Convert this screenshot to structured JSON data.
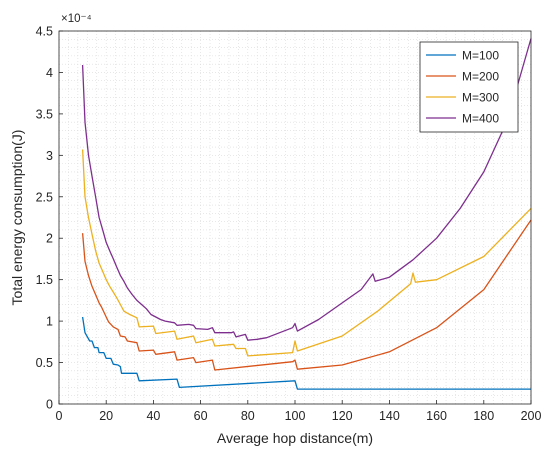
{
  "chart_data": {
    "type": "line",
    "title": "",
    "xlabel": "Average hop distance(m)",
    "ylabel": "Total energy consumption(J)",
    "y_exponent_label": "×10⁻⁴",
    "xlim": [
      0,
      200
    ],
    "ylim": [
      0,
      4.5
    ],
    "x_ticks": [
      0,
      20,
      40,
      60,
      80,
      100,
      120,
      140,
      160,
      180,
      200
    ],
    "y_ticks": [
      0,
      0.5,
      1,
      1.5,
      2,
      2.5,
      3,
      3.5,
      4,
      4.5
    ],
    "y_tick_labels": [
      "0",
      "0.5",
      "1",
      "1.5",
      "2",
      "2.5",
      "3",
      "3.5",
      "4",
      "4.5"
    ],
    "grid": "on (dotted, minor)",
    "legend_position": "top-right",
    "series": [
      {
        "name": "M=100",
        "color": "#0072bd",
        "points": [
          [
            10,
            1.05
          ],
          [
            11,
            0.86
          ],
          [
            13,
            0.76
          ],
          [
            14,
            0.76
          ],
          [
            15,
            0.68
          ],
          [
            16.5,
            0.68
          ],
          [
            17,
            0.62
          ],
          [
            19,
            0.62
          ],
          [
            20,
            0.55
          ],
          [
            22,
            0.55
          ],
          [
            23,
            0.48
          ],
          [
            25,
            0.47
          ],
          [
            26,
            0.45
          ],
          [
            26.5,
            0.37
          ],
          [
            33,
            0.37
          ],
          [
            34,
            0.28
          ],
          [
            50,
            0.3
          ],
          [
            51,
            0.2
          ],
          [
            100,
            0.28
          ],
          [
            101,
            0.18
          ],
          [
            200,
            0.18
          ]
        ]
      },
      {
        "name": "M=200",
        "color": "#d95319",
        "points": [
          [
            10,
            2.06
          ],
          [
            11,
            1.72
          ],
          [
            12.5,
            1.55
          ],
          [
            14,
            1.42
          ],
          [
            15.5,
            1.32
          ],
          [
            17,
            1.22
          ],
          [
            18,
            1.17
          ],
          [
            20,
            1.05
          ],
          [
            21,
            0.99
          ],
          [
            23,
            0.93
          ],
          [
            25,
            0.9
          ],
          [
            26,
            0.82
          ],
          [
            28,
            0.81
          ],
          [
            29,
            0.76
          ],
          [
            33,
            0.74
          ],
          [
            34,
            0.64
          ],
          [
            40,
            0.65
          ],
          [
            41,
            0.6
          ],
          [
            49,
            0.63
          ],
          [
            50,
            0.53
          ],
          [
            57,
            0.56
          ],
          [
            58,
            0.5
          ],
          [
            65,
            0.53
          ],
          [
            66,
            0.41
          ],
          [
            99,
            0.51
          ],
          [
            100,
            0.53
          ],
          [
            101,
            0.42
          ],
          [
            120,
            0.47
          ],
          [
            140,
            0.63
          ],
          [
            160,
            0.92
          ],
          [
            180,
            1.38
          ],
          [
            200,
            2.22
          ]
        ]
      },
      {
        "name": "M=300",
        "color": "#edb120",
        "points": [
          [
            10,
            3.07
          ],
          [
            11,
            2.5
          ],
          [
            12.5,
            2.25
          ],
          [
            14,
            2.05
          ],
          [
            15.5,
            1.85
          ],
          [
            17,
            1.7
          ],
          [
            18.5,
            1.6
          ],
          [
            20,
            1.5
          ],
          [
            21.5,
            1.42
          ],
          [
            23,
            1.35
          ],
          [
            24.5,
            1.28
          ],
          [
            26,
            1.2
          ],
          [
            27.5,
            1.12
          ],
          [
            30,
            1.08
          ],
          [
            33,
            1.04
          ],
          [
            34,
            0.93
          ],
          [
            40,
            0.94
          ],
          [
            41,
            0.85
          ],
          [
            49,
            0.88
          ],
          [
            50,
            0.78
          ],
          [
            57,
            0.82
          ],
          [
            58,
            0.74
          ],
          [
            65,
            0.78
          ],
          [
            66,
            0.7
          ],
          [
            74,
            0.72
          ],
          [
            75,
            0.67
          ],
          [
            79,
            0.67
          ],
          [
            80,
            0.58
          ],
          [
            99,
            0.62
          ],
          [
            100,
            0.76
          ],
          [
            101,
            0.64
          ],
          [
            120,
            0.82
          ],
          [
            135,
            1.12
          ],
          [
            149,
            1.45
          ],
          [
            150,
            1.58
          ],
          [
            151,
            1.47
          ],
          [
            160,
            1.5
          ],
          [
            180,
            1.78
          ],
          [
            200,
            2.36
          ]
        ]
      },
      {
        "name": "M=400",
        "color": "#7e2f8e",
        "points": [
          [
            10,
            4.09
          ],
          [
            11,
            3.4
          ],
          [
            12.5,
            3.0
          ],
          [
            14,
            2.75
          ],
          [
            15.5,
            2.5
          ],
          [
            17,
            2.25
          ],
          [
            18.5,
            2.1
          ],
          [
            20,
            1.95
          ],
          [
            21.5,
            1.85
          ],
          [
            23,
            1.75
          ],
          [
            24.5,
            1.65
          ],
          [
            26,
            1.55
          ],
          [
            27.5,
            1.48
          ],
          [
            29,
            1.4
          ],
          [
            31,
            1.32
          ],
          [
            33,
            1.25
          ],
          [
            35,
            1.2
          ],
          [
            37,
            1.15
          ],
          [
            39,
            1.08
          ],
          [
            41,
            1.05
          ],
          [
            43,
            1.02
          ],
          [
            45,
            1.0
          ],
          [
            49,
            0.98
          ],
          [
            50,
            0.95
          ],
          [
            55,
            0.96
          ],
          [
            57,
            0.95
          ],
          [
            58,
            0.91
          ],
          [
            63,
            0.9
          ],
          [
            65,
            0.92
          ],
          [
            66,
            0.86
          ],
          [
            73,
            0.86
          ],
          [
            74,
            0.87
          ],
          [
            75,
            0.81
          ],
          [
            79,
            0.84
          ],
          [
            80,
            0.77
          ],
          [
            84,
            0.78
          ],
          [
            88,
            0.8
          ],
          [
            99,
            0.92
          ],
          [
            100,
            0.97
          ],
          [
            101,
            0.88
          ],
          [
            110,
            1.02
          ],
          [
            120,
            1.22
          ],
          [
            128,
            1.38
          ],
          [
            133,
            1.57
          ],
          [
            134,
            1.48
          ],
          [
            140,
            1.53
          ],
          [
            150,
            1.74
          ],
          [
            160,
            2.0
          ],
          [
            170,
            2.36
          ],
          [
            180,
            2.8
          ],
          [
            190,
            3.42
          ],
          [
            200,
            4.41
          ]
        ]
      }
    ]
  }
}
